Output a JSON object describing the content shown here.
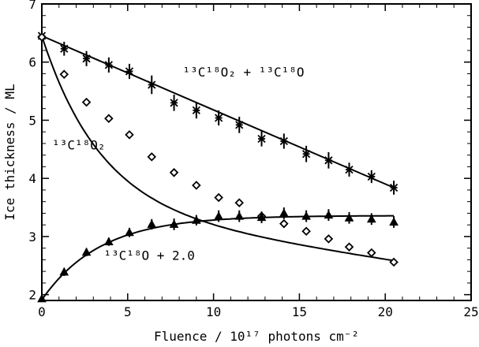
{
  "chart_data": {
    "type": "scatter",
    "xlabel": "Fluence / 10¹⁷ photons cm⁻²",
    "ylabel": "Ice thickness / ML",
    "xlim": [
      0,
      25
    ],
    "ylim": [
      1.9,
      7.0
    ],
    "x_ticks": [
      0,
      5,
      10,
      15,
      20,
      25
    ],
    "y_ticks": [
      2,
      3,
      4,
      5,
      6,
      7
    ],
    "grid": false,
    "legend": "none",
    "annotations": [
      {
        "id": "sum",
        "text": "¹³C¹⁸O₂ + ¹³C¹⁸O",
        "x": 8.2,
        "y": 5.75
      },
      {
        "id": "co2",
        "text": "¹³C¹⁸O₂",
        "x": 0.6,
        "y": 4.5
      },
      {
        "id": "co",
        "text": "¹³C¹⁸O + 2.0",
        "x": 3.6,
        "y": 2.6
      }
    ],
    "series": [
      {
        "marker": "asterisk",
        "points": [
          {
            "x": 0.0,
            "y": 6.45,
            "err": 0.1
          },
          {
            "x": 1.3,
            "y": 6.23,
            "err": 0.12
          },
          {
            "x": 2.6,
            "y": 6.06,
            "err": 0.13
          },
          {
            "x": 3.9,
            "y": 5.95,
            "err": 0.13
          },
          {
            "x": 5.1,
            "y": 5.84,
            "err": 0.13
          },
          {
            "x": 6.4,
            "y": 5.61,
            "err": 0.16
          },
          {
            "x": 7.7,
            "y": 5.3,
            "err": 0.14
          },
          {
            "x": 9.0,
            "y": 5.17,
            "err": 0.14
          },
          {
            "x": 10.3,
            "y": 5.04,
            "err": 0.13
          },
          {
            "x": 11.5,
            "y": 4.92,
            "err": 0.14
          },
          {
            "x": 12.8,
            "y": 4.68,
            "err": 0.13
          },
          {
            "x": 14.1,
            "y": 4.64,
            "err": 0.13
          },
          {
            "x": 15.4,
            "y": 4.42,
            "err": 0.14
          },
          {
            "x": 16.7,
            "y": 4.31,
            "err": 0.14
          },
          {
            "x": 17.9,
            "y": 4.15,
            "err": 0.12
          },
          {
            "x": 19.2,
            "y": 4.03,
            "err": 0.11
          },
          {
            "x": 20.5,
            "y": 3.84,
            "err": 0.12
          }
        ],
        "fit": {
          "kind": "linear",
          "x0": 0.0,
          "y0": 6.45,
          "x1": 20.5,
          "y1": 3.84
        }
      },
      {
        "marker": "diamond",
        "points": [
          {
            "x": 0.0,
            "y": 6.43,
            "err": 0.05
          },
          {
            "x": 1.3,
            "y": 5.79,
            "err": 0.05
          },
          {
            "x": 2.6,
            "y": 5.31,
            "err": 0.05
          },
          {
            "x": 3.9,
            "y": 5.03,
            "err": 0.05
          },
          {
            "x": 5.1,
            "y": 4.75,
            "err": 0.05
          },
          {
            "x": 6.4,
            "y": 4.37,
            "err": 0.05
          },
          {
            "x": 7.7,
            "y": 4.1,
            "err": 0.05
          },
          {
            "x": 9.0,
            "y": 3.88,
            "err": 0.05
          },
          {
            "x": 10.3,
            "y": 3.67,
            "err": 0.05
          },
          {
            "x": 11.5,
            "y": 3.58,
            "err": 0.05
          },
          {
            "x": 12.8,
            "y": 3.35,
            "err": 0.05
          },
          {
            "x": 14.1,
            "y": 3.22,
            "err": 0.05
          },
          {
            "x": 15.4,
            "y": 3.09,
            "err": 0.05
          },
          {
            "x": 16.7,
            "y": 2.96,
            "err": 0.05
          },
          {
            "x": 17.9,
            "y": 2.82,
            "err": 0.05
          },
          {
            "x": 19.2,
            "y": 2.72,
            "err": 0.05
          },
          {
            "x": 20.5,
            "y": 2.56,
            "err": 0.05
          }
        ],
        "fit": {
          "kind": "exp_decay_plus_linear",
          "a": 2.95,
          "b": 3.5,
          "tau": 3.4,
          "slope": -0.045
        }
      },
      {
        "marker": "triangle",
        "points": [
          {
            "x": 0.0,
            "y": 1.93,
            "err": 0.05
          },
          {
            "x": 1.3,
            "y": 2.39,
            "err": 0.07
          },
          {
            "x": 2.6,
            "y": 2.73,
            "err": 0.07
          },
          {
            "x": 3.9,
            "y": 2.91,
            "err": 0.07
          },
          {
            "x": 5.1,
            "y": 3.07,
            "err": 0.08
          },
          {
            "x": 6.4,
            "y": 3.21,
            "err": 0.09
          },
          {
            "x": 7.7,
            "y": 3.21,
            "err": 0.1
          },
          {
            "x": 9.0,
            "y": 3.28,
            "err": 0.09
          },
          {
            "x": 10.3,
            "y": 3.35,
            "err": 0.1
          },
          {
            "x": 11.5,
            "y": 3.35,
            "err": 0.1
          },
          {
            "x": 12.8,
            "y": 3.33,
            "err": 0.1
          },
          {
            "x": 14.1,
            "y": 3.4,
            "err": 0.1
          },
          {
            "x": 15.4,
            "y": 3.35,
            "err": 0.1
          },
          {
            "x": 16.7,
            "y": 3.37,
            "err": 0.1
          },
          {
            "x": 17.9,
            "y": 3.32,
            "err": 0.1
          },
          {
            "x": 19.2,
            "y": 3.3,
            "err": 0.1
          },
          {
            "x": 20.5,
            "y": 3.25,
            "err": 0.1
          }
        ],
        "fit": {
          "kind": "exp_rise",
          "a": 3.36,
          "b": 1.45,
          "tau": 3.4
        }
      }
    ]
  }
}
